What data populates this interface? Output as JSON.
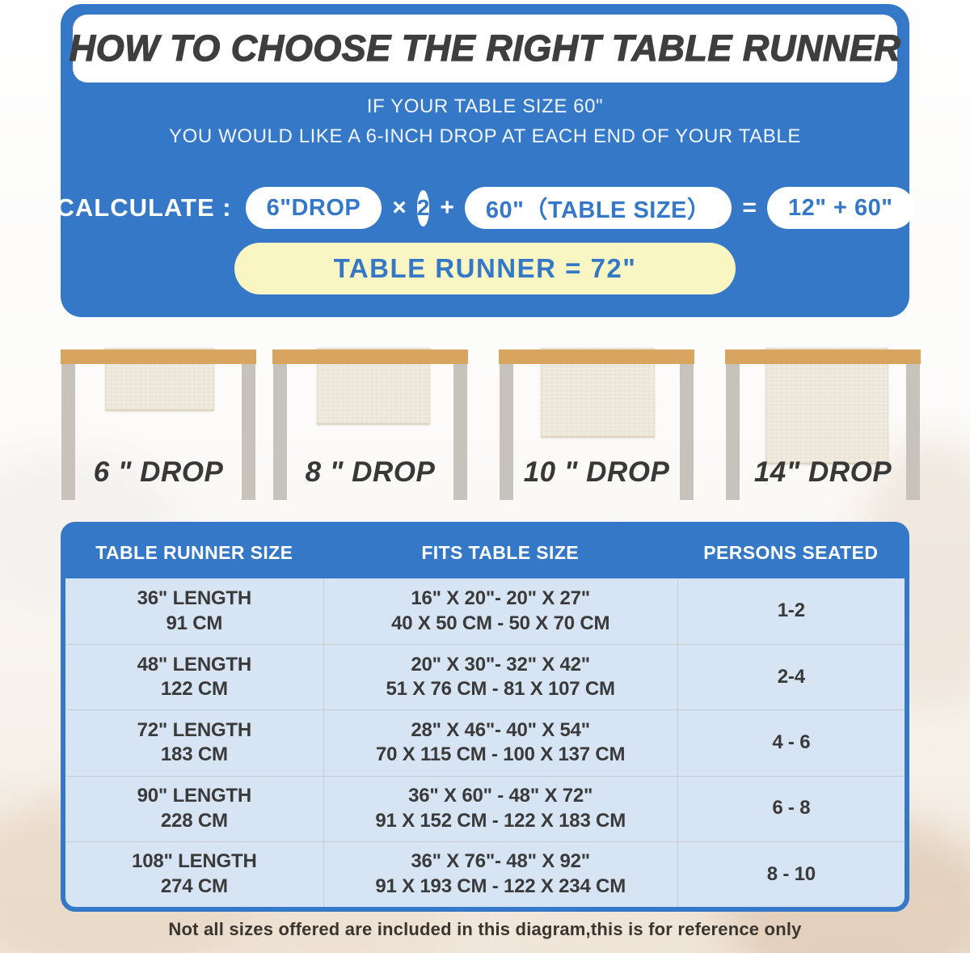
{
  "colors": {
    "blue": "#3578C8",
    "yellow": "#FAF6C3",
    "title_dark": "#3E3E3E",
    "runner_cream": "#EFEBDF",
    "tabletop_tan": "#D8A561",
    "leg_gray": "#C7C2BC"
  },
  "header": {
    "title": "HOW TO CHOOSE THE RIGHT TABLE RUNNER",
    "subtitle_line1": "IF YOUR TABLE SIZE 60\"",
    "subtitle_line2": "YOU WOULD LIKE A 6-INCH DROP AT EACH END OF YOUR TABLE",
    "calculate": {
      "label": "CALCULATE :",
      "drop_pill": "6\"DROP",
      "times": "×",
      "multiplier": "2",
      "plus": "+",
      "table_size_pill": "60\"（TABLE SIZE）",
      "equals": "=",
      "sum_pill": "12\" + 60\"",
      "final": "TABLE RUNNER = 72\""
    }
  },
  "drops": [
    {
      "label": "6 \" DROP",
      "inches": 6
    },
    {
      "label": "8 \" DROP",
      "inches": 8
    },
    {
      "label": "10 \" DROP",
      "inches": 10
    },
    {
      "label": "14\" DROP",
      "inches": 14
    }
  ],
  "size_table": {
    "headers": [
      "TABLE RUNNER SIZE",
      "FITS TABLE SIZE",
      "PERSONS SEATED"
    ],
    "rows": [
      {
        "size_in": "36\" LENGTH",
        "size_cm": "91 CM",
        "fits_in": "16\" X 20\"- 20\" X 27\"",
        "fits_cm": "40 X 50 CM - 50 X 70 CM",
        "persons": "1-2"
      },
      {
        "size_in": "48\" LENGTH",
        "size_cm": "122 CM",
        "fits_in": "20\" X 30\"- 32\" X 42\"",
        "fits_cm": "51 X 76 CM - 81 X 107 CM",
        "persons": "2-4"
      },
      {
        "size_in": "72\" LENGTH",
        "size_cm": "183 CM",
        "fits_in": "28\" X 46\"- 40\" X 54\"",
        "fits_cm": "70 X 115 CM - 100 X 137 CM",
        "persons": "4 - 6"
      },
      {
        "size_in": "90\" LENGTH",
        "size_cm": "228 CM",
        "fits_in": "36\" X 60\" - 48\" X 72\"",
        "fits_cm": "91 X 152 CM - 122 X 183 CM",
        "persons": "6 - 8"
      },
      {
        "size_in": "108\" LENGTH",
        "size_cm": "274 CM",
        "fits_in": "36\" X 76\"- 48\" X 92\"",
        "fits_cm": "91 X 193 CM - 122 X 234 CM",
        "persons": "8 - 10"
      }
    ]
  },
  "footnote": "Not all sizes offered are included in this diagram,this is for reference only"
}
